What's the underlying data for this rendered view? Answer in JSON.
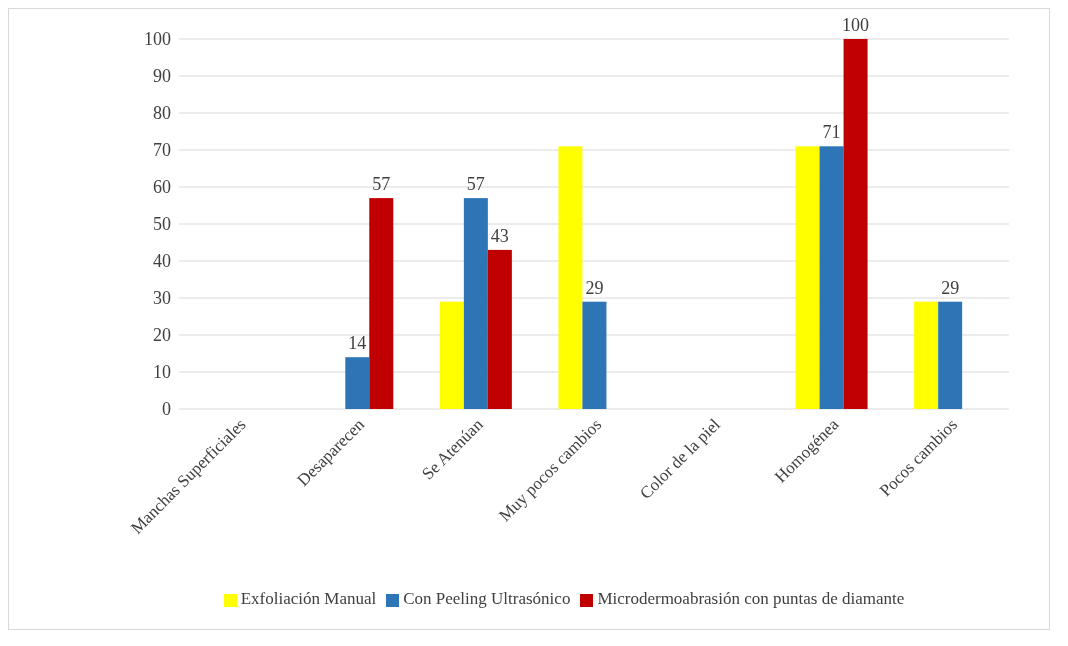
{
  "chart_data": {
    "type": "bar",
    "categories": [
      "Manchas Superficiales",
      "Desaparecen",
      "Se Atenúan",
      "Muy pocos cambios",
      "Color de la piel",
      "Homogénea",
      "Pocos cambios"
    ],
    "series": [
      {
        "name": "Exfoliación Manual",
        "color": "#ffff00",
        "values": [
          null,
          0,
          29,
          71,
          null,
          71,
          29
        ]
      },
      {
        "name": "Con Peeling Ultrasónico",
        "color": "#2e75b6",
        "values": [
          null,
          14,
          57,
          29,
          null,
          71,
          29
        ],
        "value_labels": [
          null,
          "14",
          "57",
          "29",
          null,
          "71",
          "29"
        ]
      },
      {
        "name": "Microdermoabrasión con puntas de diamante",
        "color": "#c00000",
        "values": [
          null,
          57,
          43,
          0,
          null,
          100,
          0
        ],
        "value_labels": [
          null,
          "57",
          "43",
          null,
          null,
          "100",
          null
        ]
      }
    ],
    "ylim": [
      0,
      100
    ],
    "yticks": [
      0,
      10,
      20,
      30,
      40,
      50,
      60,
      70,
      80,
      90,
      100
    ],
    "grid": "y",
    "legend": "bottom"
  }
}
